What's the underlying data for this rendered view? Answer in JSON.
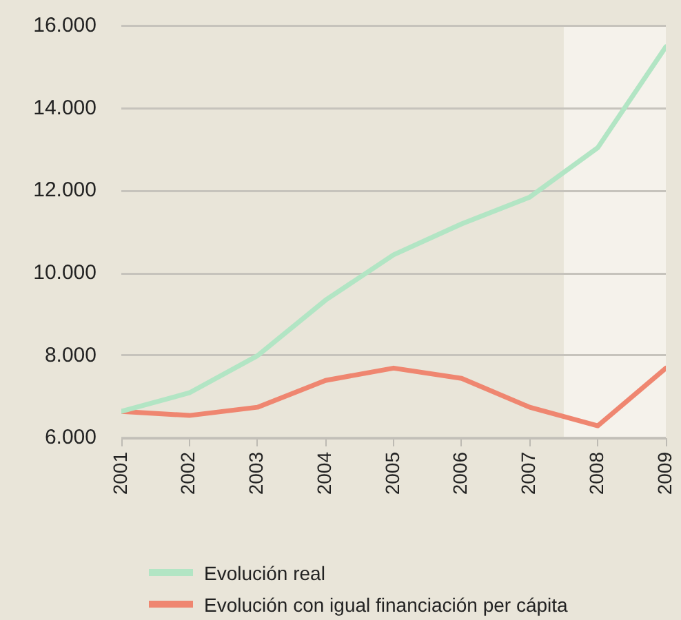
{
  "chart_data": {
    "type": "line",
    "x": [
      2001,
      2002,
      2003,
      2004,
      2005,
      2006,
      2007,
      2008,
      2009
    ],
    "series": [
      {
        "name": "Evolución real",
        "color": "#b2e5c4",
        "values": [
          6650,
          7100,
          8000,
          9350,
          10450,
          11200,
          11850,
          13050,
          15500
        ]
      },
      {
        "name": "Evolución con igual financiación per cápita",
        "color": "#ef8670",
        "values": [
          6650,
          6550,
          6750,
          7400,
          7700,
          7450,
          6750,
          6300,
          7700
        ]
      }
    ],
    "xlim": [
      2001,
      2009
    ],
    "xticks": [
      2001,
      2002,
      2003,
      2004,
      2005,
      2006,
      2007,
      2008,
      2009
    ],
    "ylim": [
      6000,
      16000
    ],
    "yticks": [
      {
        "value": 6000,
        "label": "6.000"
      },
      {
        "value": 8000,
        "label": "8.000"
      },
      {
        "value": 10000,
        "label": "10.000"
      },
      {
        "value": 12000,
        "label": "12.000"
      },
      {
        "value": 14000,
        "label": "14.000"
      },
      {
        "value": 16000,
        "label": "16.000"
      }
    ],
    "bands": [
      {
        "axis": "x",
        "from": 2007.5,
        "to": 2009,
        "color": "#f5f2eb"
      }
    ],
    "grid": "y",
    "legend": "bottom",
    "marker": "none",
    "line_style": "solid"
  }
}
